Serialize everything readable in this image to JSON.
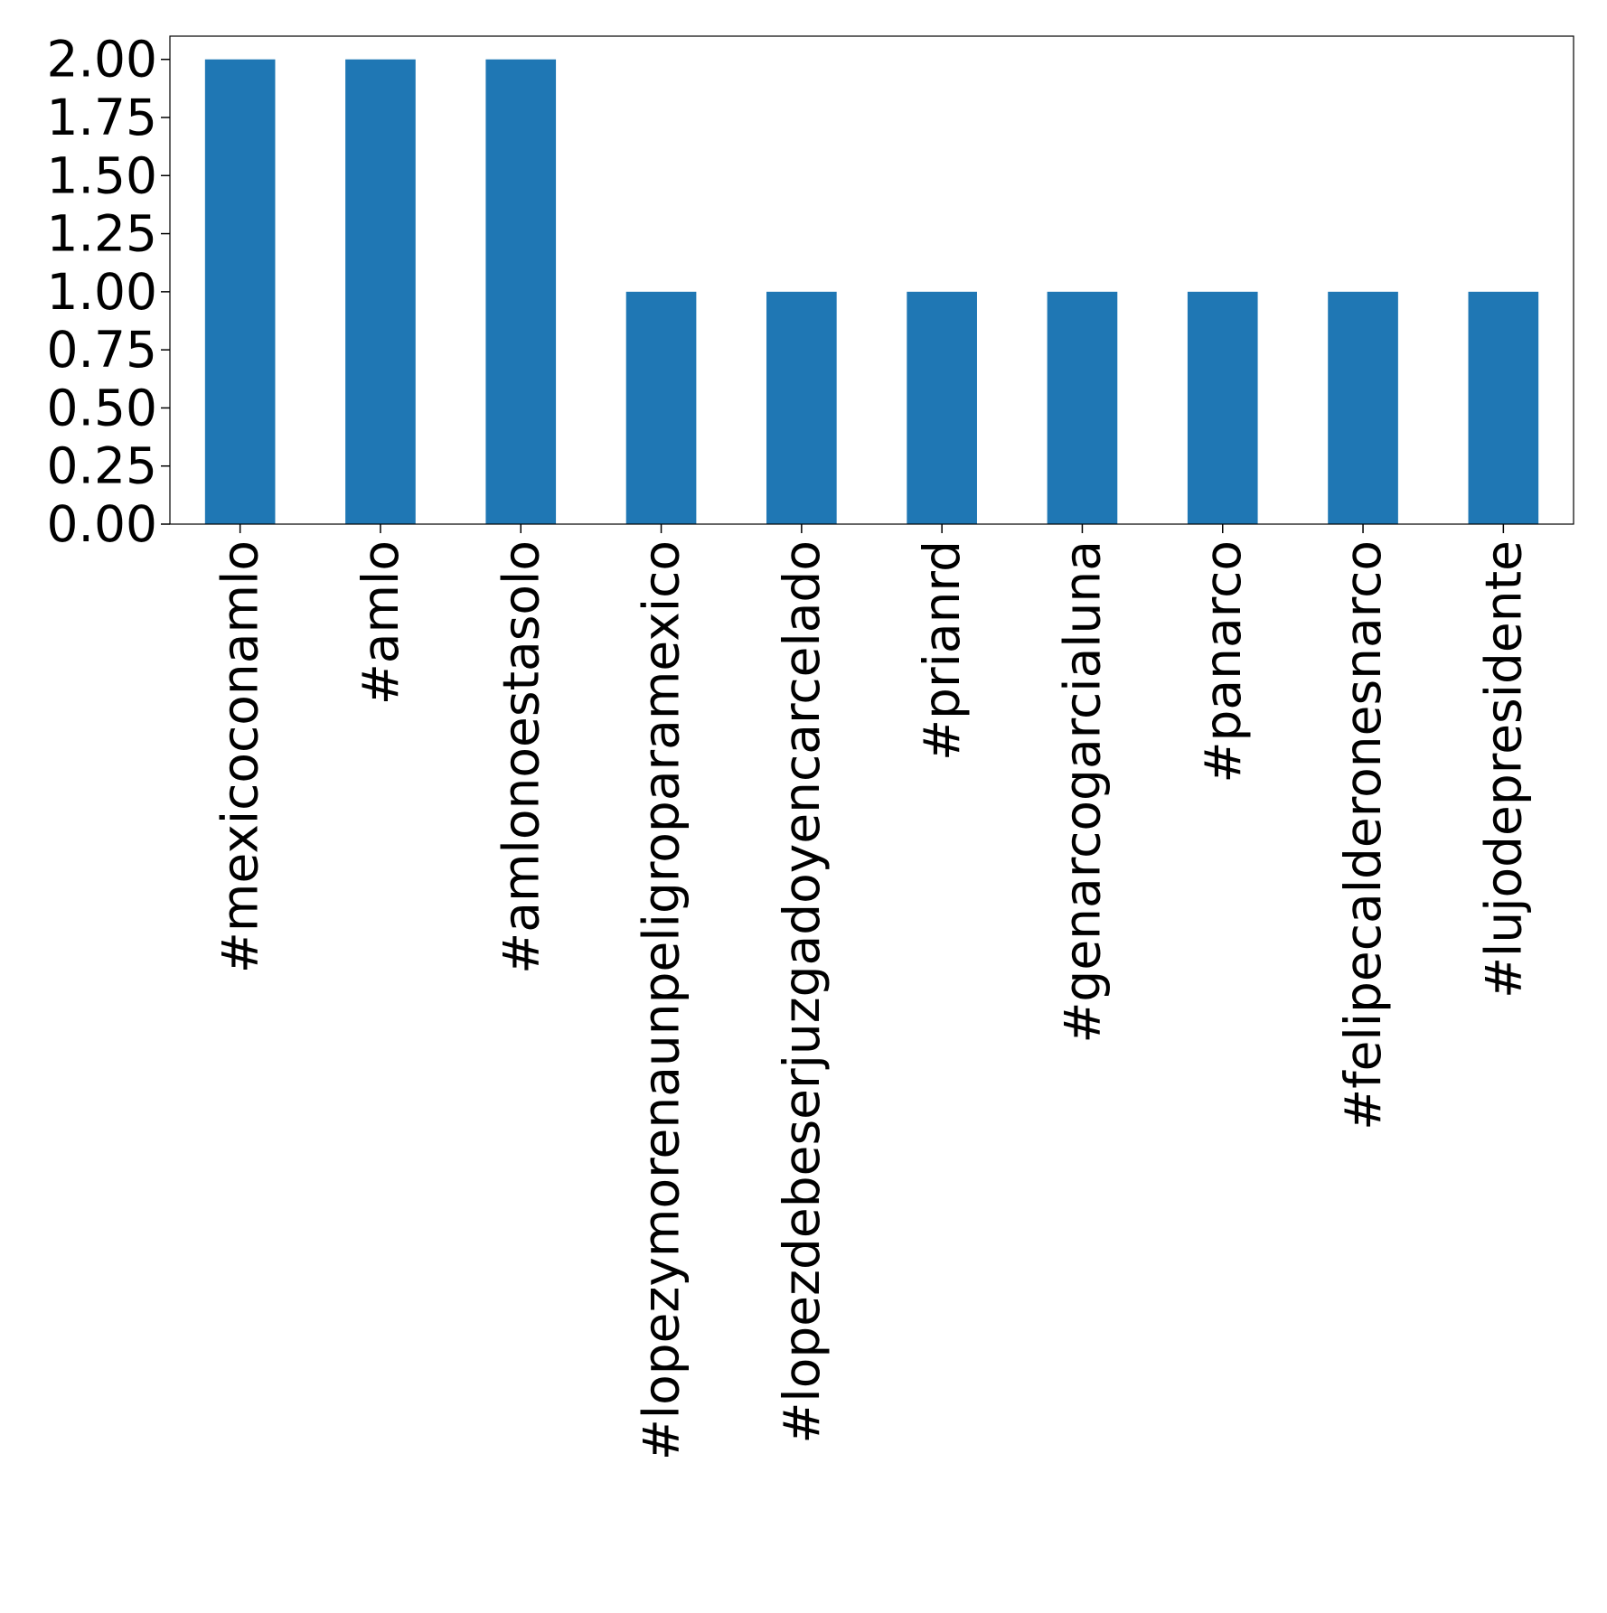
{
  "chart_data": {
    "type": "bar",
    "title": "",
    "xlabel": "",
    "ylabel": "",
    "categories": [
      "#mexicoconamlo",
      "#amlo",
      "#amlonoestasolo",
      "#lopezymorenaunpeligroparamexico",
      "#lopezdebeserjuzgadoyencarcelado",
      "#prianrd",
      "#genarcogarcialuna",
      "#panarco",
      "#felipecalderonesnarco",
      "#lujodepresidente"
    ],
    "values": [
      2,
      2,
      2,
      1,
      1,
      1,
      1,
      1,
      1,
      1
    ],
    "ylim": [
      0,
      2.1
    ],
    "yticks": [
      "0.00",
      "0.25",
      "0.50",
      "0.75",
      "1.00",
      "1.25",
      "1.50",
      "1.75",
      "2.00"
    ],
    "grid": false,
    "legend": "none",
    "colors": {
      "bar": "#1f77b4",
      "axis": "#000000",
      "background": "#ffffff"
    }
  }
}
